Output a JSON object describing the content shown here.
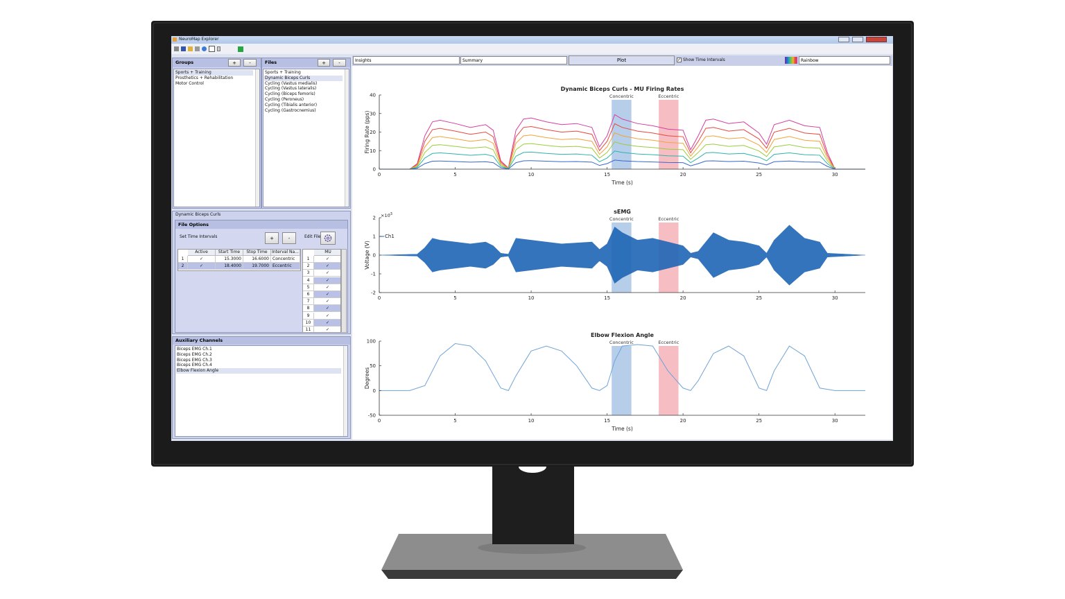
{
  "app": {
    "title": "NeuroMap Explorer",
    "groups": {
      "title": "Groups",
      "add": "+",
      "remove": "-",
      "items": [
        "Sports + Training",
        "Prosthetics + Rehabilitation",
        "Motor Control"
      ]
    },
    "files": {
      "title": "Files",
      "add": "+",
      "remove": "-",
      "items": [
        "Sports + Training",
        "Dynamic Biceps Curls",
        "Cycling (Vastus medialis)",
        "Cycling (Vastus lateralis)",
        "Cycling (Biceps femoris)",
        "Cycling (Peroneus)",
        "Cycling (Tibialis anterior)",
        "Cycling (Gastrocnemius)"
      ]
    },
    "file_panel": {
      "title": "Dynamic Biceps Curls",
      "options": "File Options",
      "set_intervals": "Set Time Intervals",
      "add": "+",
      "remove": "-",
      "edit": "Edit File",
      "interval_table": {
        "headers": [
          "Active",
          "Start Time",
          "Stop Time",
          "Interval Na..."
        ],
        "rows": [
          [
            "1",
            "✓",
            "15.3000",
            "16.6000",
            "Concentric"
          ],
          [
            "2",
            "✓",
            "18.4000",
            "19.7000",
            "Eccentric"
          ]
        ]
      },
      "mu_table": {
        "header": "MU",
        "rows": [
          [
            "1",
            "✓"
          ],
          [
            "2",
            "✓"
          ],
          [
            "3",
            "✓"
          ],
          [
            "4",
            "✓"
          ],
          [
            "5",
            "✓"
          ],
          [
            "6",
            "✓"
          ],
          [
            "7",
            "✓"
          ],
          [
            "8",
            "✓"
          ],
          [
            "9",
            "✓"
          ],
          [
            "10",
            "✓"
          ],
          [
            "11",
            "✓"
          ]
        ]
      }
    },
    "aux": {
      "title": "Auxiliary Channels",
      "items": [
        "Biceps EMG Ch.1",
        "Biceps EMG Ch.2",
        "Biceps EMG Ch.3",
        "Biceps EMG Ch.4",
        "Elbow Flexion Angle"
      ]
    },
    "toolbar": {
      "view": "Insights",
      "mode": "Summary",
      "plot": "Plot",
      "show_intervals": "Show Time Intervals",
      "colormap": "Rainbow"
    }
  },
  "chart_data": [
    {
      "type": "line",
      "title": "Dynamic Biceps Curls - MU Firing Rates",
      "xlabel": "Time (s)",
      "ylabel": "Firing Rate (pps)",
      "xlim": [
        0,
        32
      ],
      "xticks": [
        0,
        5,
        10,
        15,
        20,
        25,
        30
      ],
      "ylim": [
        0,
        40
      ],
      "yticks": [
        0,
        10,
        20,
        30,
        40
      ],
      "intervals": [
        {
          "label": "Concentric",
          "start": 15.3,
          "stop": 16.6,
          "color": "#a9c6e6"
        },
        {
          "label": "Eccentric",
          "start": 18.4,
          "stop": 19.7,
          "color": "#f5b3b8"
        }
      ],
      "x": [
        0,
        2,
        2.5,
        3,
        3.5,
        4,
        5,
        6,
        7,
        7.5,
        8,
        8.5,
        9,
        9.5,
        10,
        11,
        12,
        13,
        14,
        14.5,
        15,
        15.5,
        16,
        17,
        18,
        19,
        20,
        20.5,
        21,
        21.5,
        22,
        23,
        24,
        25,
        25.5,
        26,
        27,
        28,
        29,
        29.5,
        30,
        32
      ],
      "series": [
        {
          "color": "#d63fa0",
          "values": [
            0,
            0,
            3,
            18,
            25.5,
            26.4,
            24.6,
            22.5,
            24,
            21,
            4.5,
            0.6,
            21,
            27,
            27.6,
            25.5,
            24,
            24.6,
            22.5,
            12,
            18,
            29.4,
            27,
            24.6,
            23.4,
            21.6,
            21,
            10.5,
            18,
            26.4,
            27,
            24.6,
            25.5,
            19.5,
            13.5,
            24,
            26.4,
            23.4,
            22.5,
            9,
            0,
            0
          ]
        },
        {
          "color": "#e8473c",
          "values": [
            0,
            0,
            2.5,
            15,
            21.3,
            22,
            20.5,
            18.8,
            20,
            17.5,
            3.8,
            0.5,
            17.5,
            22.5,
            23,
            21.3,
            20,
            20.5,
            18.8,
            10,
            15,
            24.5,
            22.5,
            20.5,
            19.5,
            18,
            17.5,
            8.8,
            15,
            22,
            22.5,
            20.5,
            21.3,
            16.3,
            11.3,
            20,
            22,
            19.5,
            18.8,
            7.5,
            0,
            0
          ]
        },
        {
          "color": "#f2a33a",
          "values": [
            0,
            0,
            2,
            12,
            17,
            17.6,
            16.4,
            15,
            16,
            14,
            3,
            0.4,
            14,
            18,
            18.4,
            17,
            16,
            16.4,
            15,
            8,
            12,
            19.6,
            18,
            16.4,
            15.6,
            14.4,
            14,
            7,
            12,
            17.6,
            18,
            16.4,
            17,
            13,
            9,
            16,
            17.6,
            15.6,
            15,
            6,
            0,
            0
          ]
        },
        {
          "color": "#9ccc3c",
          "values": [
            0,
            0,
            1.5,
            9,
            12.8,
            13.2,
            12.3,
            11.3,
            12,
            10.5,
            2.3,
            0.3,
            10.5,
            13.5,
            13.8,
            12.8,
            12,
            12.3,
            11.3,
            6,
            9,
            14.7,
            13.5,
            12.3,
            11.7,
            10.8,
            10.5,
            5.3,
            9,
            13.2,
            13.5,
            12.3,
            12.8,
            9.8,
            6.8,
            12,
            13.2,
            11.7,
            11.3,
            4.5,
            0,
            0
          ]
        },
        {
          "color": "#2fb3a8",
          "values": [
            0,
            0,
            1,
            6,
            8.5,
            8.8,
            8.2,
            7.5,
            8,
            7,
            1.5,
            0.2,
            7,
            9,
            9.2,
            8.5,
            8,
            8.2,
            7.5,
            4,
            6,
            9.8,
            9,
            8.2,
            7.8,
            7.2,
            7,
            3.5,
            6,
            8.8,
            9,
            8.2,
            8.5,
            6.5,
            4.5,
            8,
            8.8,
            7.8,
            7.5,
            3,
            0,
            0
          ]
        },
        {
          "color": "#3a66cc",
          "values": [
            0,
            0,
            0.5,
            3,
            4.3,
            4.4,
            4.1,
            3.8,
            4,
            3.5,
            0.8,
            0.1,
            3.5,
            4.5,
            4.6,
            4.3,
            4,
            4.1,
            3.8,
            2,
            3,
            4.9,
            4.5,
            4.1,
            3.9,
            3.6,
            3.5,
            1.8,
            3,
            4.4,
            4.5,
            4.1,
            4.3,
            3.3,
            2.3,
            4,
            4.4,
            3.9,
            3.8,
            1.5,
            0,
            0
          ]
        }
      ]
    },
    {
      "type": "area",
      "title": "sEMG",
      "ylabel": "Voltage (V)",
      "y_exponent": "×10",
      "y_exponent_power": "-3",
      "xlim": [
        0,
        32
      ],
      "xticks": [
        0,
        5,
        10,
        15,
        20,
        25,
        30
      ],
      "ylim": [
        -2,
        2
      ],
      "yticks": [
        -2,
        -1,
        0,
        1,
        2
      ],
      "intervals": [
        {
          "label": "Concentric",
          "start": 15.3,
          "stop": 16.6,
          "color": "#a9c6e6"
        },
        {
          "label": "Eccentric",
          "start": 18.4,
          "stop": 19.7,
          "color": "#f5b3b8"
        }
      ],
      "x": [
        0,
        2.5,
        3,
        3.5,
        4,
        6,
        7,
        7.5,
        8,
        8.5,
        9,
        10,
        12,
        14,
        14.5,
        15,
        15.5,
        16,
        17,
        18,
        19,
        20,
        20.5,
        21,
        22,
        23,
        24,
        25,
        25.5,
        26,
        27,
        28,
        29,
        29.5,
        32
      ],
      "series": [
        {
          "name": "Ch1",
          "color": "#1f66b5",
          "values": [
            0,
            0.05,
            0.4,
            0.9,
            0.8,
            0.6,
            0.7,
            0.5,
            0.1,
            0.05,
            0.9,
            0.8,
            0.6,
            0.7,
            0.3,
            0.6,
            1.5,
            1.2,
            0.8,
            0.9,
            0.7,
            0.5,
            0.1,
            0.2,
            1.2,
            0.8,
            0.7,
            0.5,
            0.1,
            0.8,
            1.6,
            0.9,
            0.7,
            0.1,
            0
          ]
        }
      ]
    },
    {
      "type": "line",
      "title": "Elbow Flexion Angle",
      "xlabel": "Time (s)",
      "ylabel": "Degrees",
      "xlim": [
        0,
        32
      ],
      "xticks": [
        0,
        5,
        10,
        15,
        20,
        25,
        30
      ],
      "ylim": [
        -50,
        100
      ],
      "yticks": [
        -50,
        0,
        50,
        100
      ],
      "intervals": [
        {
          "label": "Concentric",
          "start": 15.3,
          "stop": 16.6,
          "color": "#a9c6e6"
        },
        {
          "label": "Eccentric",
          "start": 18.4,
          "stop": 19.7,
          "color": "#f5b3b8"
        }
      ],
      "x": [
        0,
        2,
        3,
        4,
        5,
        6,
        7,
        8,
        8.5,
        9,
        10,
        11,
        12,
        13,
        14,
        14.5,
        15,
        15.5,
        16,
        17,
        18,
        19,
        20,
        20.5,
        21,
        22,
        23,
        24,
        25,
        25.5,
        26,
        27,
        28,
        29,
        30,
        32
      ],
      "series": [
        {
          "color": "#6fa3d6",
          "values": [
            0,
            0,
            10,
            70,
            95,
            90,
            60,
            5,
            0,
            30,
            80,
            90,
            80,
            50,
            5,
            0,
            10,
            60,
            90,
            93,
            90,
            40,
            5,
            0,
            20,
            75,
            90,
            70,
            5,
            0,
            40,
            90,
            70,
            5,
            0,
            0
          ]
        }
      ]
    }
  ]
}
